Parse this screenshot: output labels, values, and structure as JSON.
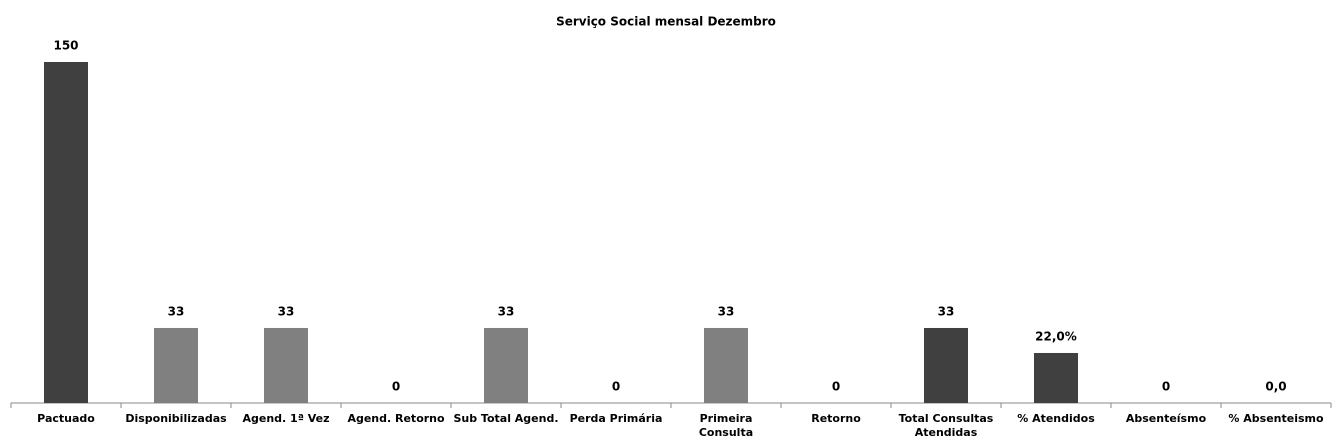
{
  "chart_data": {
    "type": "bar",
    "title": "Serviço Social mensal  Dezembro",
    "categories": [
      "Pactuado",
      "Disponibilizadas",
      "Agend. 1ª Vez",
      "Agend. Retorno",
      "Sub Total Agend.",
      "Perda Primária",
      "Primeira Consulta",
      "Retorno",
      "Total Consultas Atendidas",
      "% Atendidos",
      "Absenteísmo",
      "% Absenteismo"
    ],
    "values": [
      150,
      33,
      33,
      0,
      33,
      0,
      33,
      0,
      33,
      22,
      0,
      0
    ],
    "value_labels": [
      "150",
      "33",
      "33",
      "0",
      "33",
      "0",
      "33",
      "0",
      "33",
      "22,0%",
      "0",
      "0,0"
    ],
    "colors": [
      "#404040",
      "#808080",
      "#808080",
      "#808080",
      "#808080",
      "#808080",
      "#808080",
      "#808080",
      "#404040",
      "#404040",
      "#808080",
      "#808080"
    ],
    "ylim": [
      0,
      150
    ]
  }
}
